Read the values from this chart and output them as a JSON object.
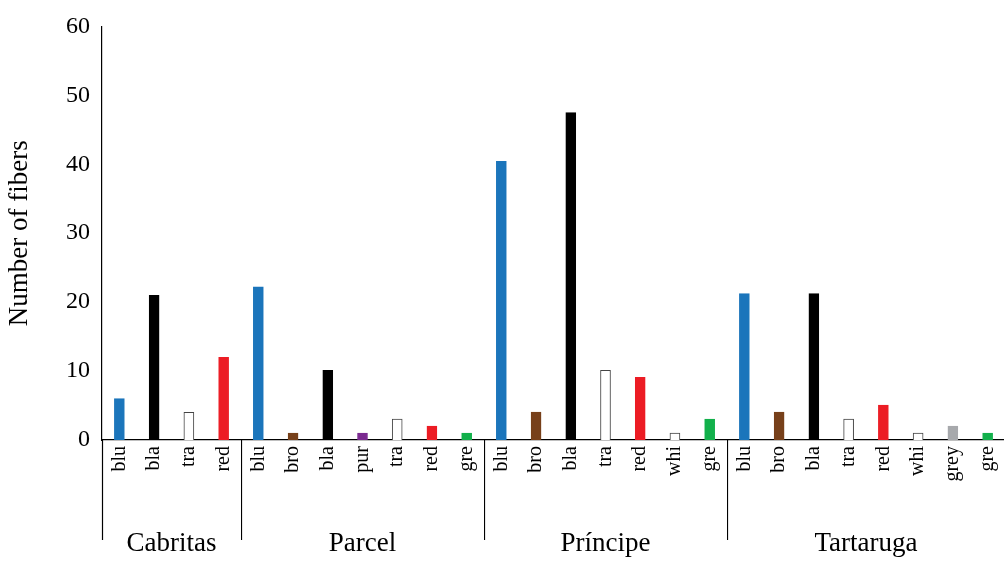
{
  "chart_data": [
    {
      "type": "bar",
      "ylabel": "Number of fibers",
      "xlabel": "Cabritas",
      "ylim": [
        0,
        60
      ],
      "yticks": [
        0,
        10,
        20,
        30,
        40,
        50,
        60
      ],
      "grid": false,
      "legend": false,
      "categories": [
        "blu",
        "bla",
        "tra",
        "red"
      ],
      "values": [
        6,
        21,
        4,
        12
      ],
      "colors": [
        "#1b75bb",
        "#000000",
        "#ffffff",
        "#ec1c24"
      ]
    },
    {
      "type": "bar",
      "xlabel": "Parcel",
      "ylim": [
        0,
        60
      ],
      "tick_labels": "x",
      "grid": false,
      "legend": false,
      "categories": [
        "blu",
        "bro",
        "bla",
        "pur",
        "tra",
        "red",
        "gre"
      ],
      "values": [
        22,
        1,
        10,
        1,
        3,
        2,
        1
      ],
      "colors": [
        "#1b75bb",
        "#77401a",
        "#000000",
        "#7b2a90",
        "#ffffff",
        "#ec1c24",
        "#12b04b"
      ]
    },
    {
      "type": "bar",
      "xlabel": "Príncipe",
      "ylim": [
        0,
        60
      ],
      "tick_labels": "x",
      "grid": false,
      "legend": false,
      "categories": [
        "blu",
        "bro",
        "bla",
        "tra",
        "red",
        "whi",
        "gre"
      ],
      "values": [
        40,
        4,
        47,
        10,
        9,
        1,
        3
      ],
      "colors": [
        "#1b75bb",
        "#77401a",
        "#000000",
        "#ffffff",
        "#ec1c24",
        "#ffffff",
        "#12b04b"
      ]
    },
    {
      "type": "bar",
      "xlabel": "Tartaruga",
      "ylim": [
        0,
        60
      ],
      "tick_labels": "x",
      "grid": false,
      "legend": false,
      "categories": [
        "blu",
        "bro",
        "bla",
        "tra",
        "red",
        "whi",
        "grey",
        "gre"
      ],
      "values": [
        21,
        4,
        21,
        3,
        5,
        1,
        2,
        1
      ],
      "colors": [
        "#1b75bb",
        "#77401a",
        "#000000",
        "#ffffff",
        "#ec1c24",
        "#ffffff",
        "#a7a9ac",
        "#12b04b"
      ]
    }
  ]
}
